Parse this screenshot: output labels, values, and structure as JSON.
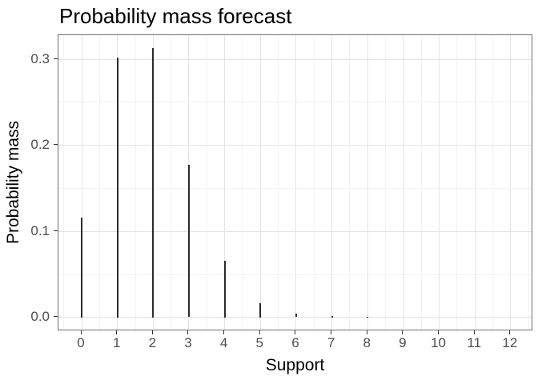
{
  "title": "Probability mass forecast",
  "colors": {
    "background": "#ffffff",
    "panel_border": "#6e6e6e",
    "grid_major": "#e4e4e4",
    "grid_minor": "#f3f3f3",
    "spike": "#2b2b2b",
    "tick_mark": "#333333",
    "tick_label": "#4d4d4d",
    "text": "#000000"
  },
  "chart_data": {
    "type": "bar",
    "subtype": "pmf-spike-plot",
    "title": "Probability mass forecast",
    "xlabel": "Support",
    "ylabel": "Probability mass",
    "x": [
      0,
      1,
      2,
      3,
      4,
      5,
      6,
      7,
      8,
      9,
      10,
      11,
      12
    ],
    "values": [
      0.116,
      0.302,
      0.313,
      0.177,
      0.066,
      0.017,
      0.004,
      0.0015,
      0.0008,
      0.0002,
      0.0001,
      0,
      0
    ],
    "x_ticks": [
      0,
      1,
      2,
      3,
      4,
      5,
      6,
      7,
      8,
      9,
      10,
      11,
      12
    ],
    "x_tick_labels": [
      "0",
      "1",
      "2",
      "3",
      "4",
      "5",
      "6",
      "7",
      "8",
      "9",
      "10",
      "11",
      "12"
    ],
    "y_ticks": [
      0,
      0.1,
      0.2,
      0.3
    ],
    "y_tick_labels": [
      "0.0",
      "0.1",
      "0.2",
      "0.3"
    ],
    "x_minor": [
      -0.5,
      0.5,
      1.5,
      2.5,
      3.5,
      4.5,
      5.5,
      6.5,
      7.5,
      8.5,
      9.5,
      10.5,
      11.5,
      12.5
    ],
    "y_minor": [
      0.05,
      0.15,
      0.25
    ],
    "xlim": [
      -0.65,
      12.63
    ],
    "ylim": [
      -0.016,
      0.328
    ],
    "grid": "major and minor gridlines, light gray, theme_bw style",
    "legend": "none"
  }
}
